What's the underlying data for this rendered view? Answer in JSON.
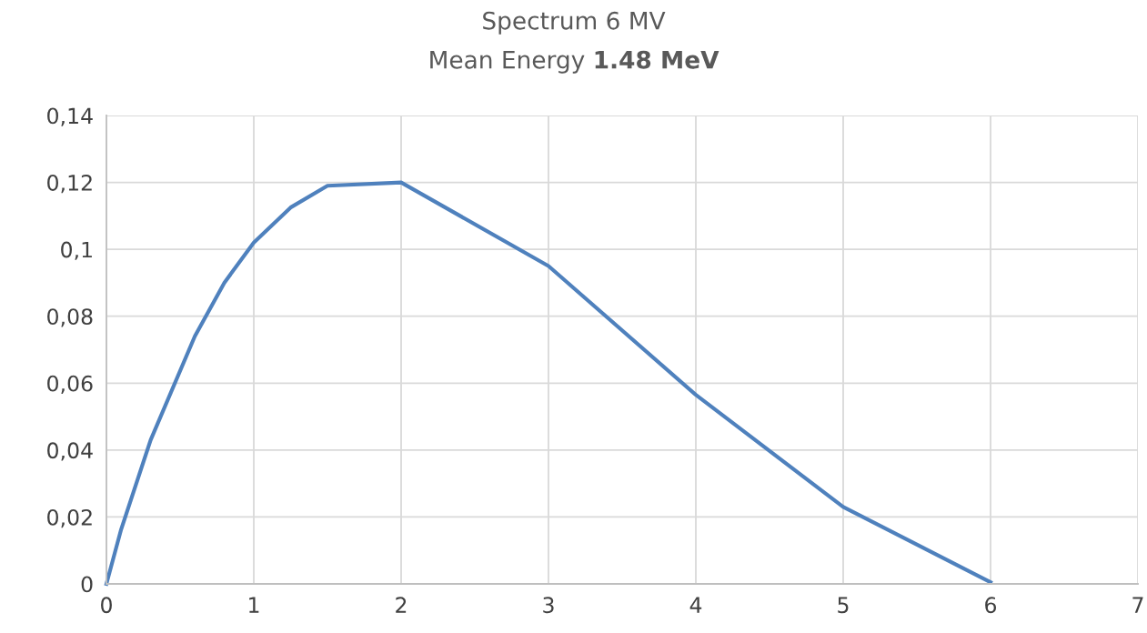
{
  "chart_data": {
    "type": "line",
    "title": "Spectrum 6 MV",
    "subtitle": "Mean Energy 1.48 MeV",
    "x": [
      0,
      0.1,
      0.3,
      0.6,
      0.8,
      1,
      1.25,
      1.5,
      2,
      3,
      4,
      5,
      6
    ],
    "series": [
      {
        "color": "#4f81bd",
        "values": [
          0,
          0.0163,
          0.043,
          0.074,
          0.09,
          0.102,
          0.1125,
          0.119,
          0.12,
          0.095,
          0.0565,
          0.023,
          0.0005
        ]
      }
    ],
    "xlim": [
      0,
      7
    ],
    "xticks": [
      0,
      1,
      2,
      3,
      4,
      5,
      6,
      7
    ],
    "ylim": [
      0,
      0.14
    ],
    "yticks": [
      {
        "value": 0,
        "label": "0"
      },
      {
        "value": 0.02,
        "label": "0,02"
      },
      {
        "value": 0.04,
        "label": "0,04"
      },
      {
        "value": 0.06,
        "label": "0,06"
      },
      {
        "value": 0.08,
        "label": "0,08"
      },
      {
        "value": 0.1,
        "label": "0,1"
      },
      {
        "value": 0.12,
        "label": "0,12"
      },
      {
        "value": 0.14,
        "label": "0,14"
      }
    ],
    "grid": true,
    "legend": false,
    "marker": "none",
    "line_style": "solid"
  }
}
